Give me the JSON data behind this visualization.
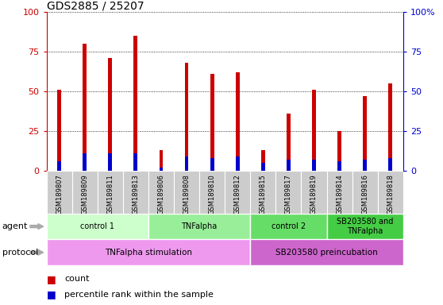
{
  "title": "GDS2885 / 25207",
  "samples": [
    "GSM189807",
    "GSM189809",
    "GSM189811",
    "GSM189813",
    "GSM189806",
    "GSM189808",
    "GSM189810",
    "GSM189812",
    "GSM189815",
    "GSM189817",
    "GSM189819",
    "GSM189814",
    "GSM189816",
    "GSM189818"
  ],
  "count_values": [
    51,
    80,
    71,
    85,
    13,
    68,
    61,
    62,
    13,
    36,
    51,
    25,
    47,
    55
  ],
  "percentile_values": [
    6,
    11,
    11,
    11,
    2,
    9,
    8,
    9,
    5,
    7,
    7,
    6,
    7,
    8
  ],
  "bar_width": 0.15,
  "count_color": "#cc0000",
  "percentile_color": "#0000cc",
  "ylim": [
    0,
    100
  ],
  "yticks": [
    0,
    25,
    50,
    75,
    100
  ],
  "agent_groups": [
    {
      "label": "control 1",
      "start": 0,
      "end": 3,
      "color": "#ccffcc"
    },
    {
      "label": "TNFalpha",
      "start": 4,
      "end": 7,
      "color": "#99ee99"
    },
    {
      "label": "control 2",
      "start": 8,
      "end": 10,
      "color": "#66dd66"
    },
    {
      "label": "SB203580 and\nTNFalpha",
      "start": 11,
      "end": 13,
      "color": "#44cc44"
    }
  ],
  "protocol_groups": [
    {
      "label": "TNFalpha stimulation",
      "start": 0,
      "end": 7,
      "color": "#ee99ee"
    },
    {
      "label": "SB203580 preincubation",
      "start": 8,
      "end": 13,
      "color": "#cc66cc"
    }
  ],
  "legend_count_label": "count",
  "legend_percentile_label": "percentile rank within the sample",
  "agent_label": "agent",
  "protocol_label": "protocol",
  "bg_color": "#ffffff",
  "tick_color_left": "#cc0000",
  "tick_color_right": "#0000cc",
  "sample_bg": "#cccccc"
}
